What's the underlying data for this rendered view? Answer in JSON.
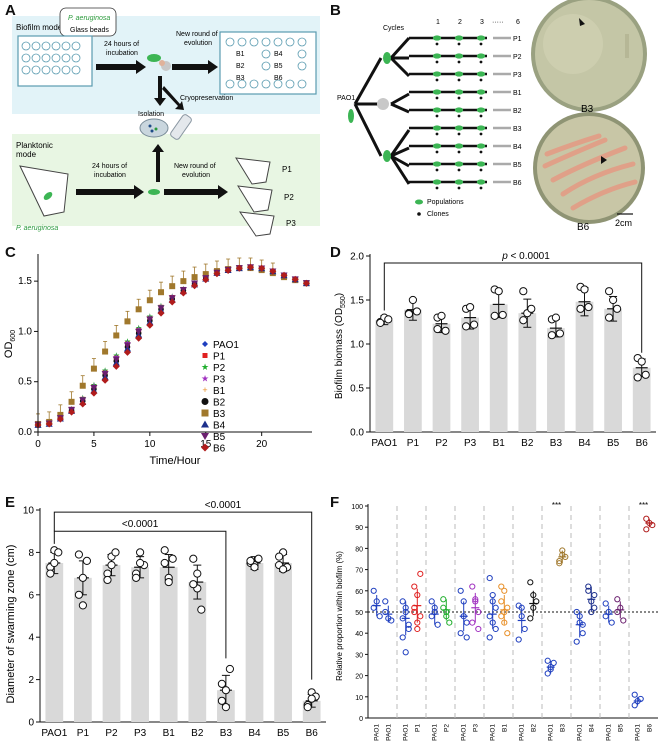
{
  "panel_letters": [
    "A",
    "B",
    "C",
    "D",
    "E",
    "F"
  ],
  "panel_a": {
    "biofilm_mode": "Biofilm mode",
    "planktonic_mode": "Planktonic mode",
    "organism": "P. aeruginosa",
    "glass_beads": "Glass beads",
    "incubation": "24 hours of incubation",
    "new_round": "New round of evolution",
    "isolation": "Isolation",
    "cryopreservation": "Cryopreservation",
    "biofilm_lines": [
      "B1",
      "B2",
      "B3",
      "B4",
      "B5",
      "B6"
    ],
    "planktonic_lines": [
      "P1",
      "P2",
      "P3"
    ]
  },
  "panel_b": {
    "cycles_label": "Cycles",
    "cycle_numbers": [
      "1",
      "2",
      "3",
      "·····",
      "6"
    ],
    "ancestor": "PAO1",
    "lines": [
      "P1",
      "P2",
      "P3",
      "B1",
      "B2",
      "B3",
      "B4",
      "B5",
      "B6"
    ],
    "legend_populations": "Populations",
    "legend_clones": "Clones",
    "plate_top": "B3",
    "plate_bottom": "B6",
    "scale_bar": "2cm"
  },
  "colors": {
    "PAO1": "#1f3fbf",
    "P1": "#e02020",
    "P2": "#1fae2c",
    "P3": "#a030c0",
    "B1": "#e8902a",
    "B2": "#111111",
    "B3": "#a0782c",
    "B4": "#1c2f8c",
    "B5": "#6a1f6e",
    "B6": "#b01c1c",
    "bar": "#d9d9d9",
    "box_biofilm": "#e2f3f8",
    "box_planktonic": "#e8f6e3",
    "green": "#3cb554"
  },
  "chart_data": [
    {
      "panel": "C",
      "type": "line",
      "xlabel": "Time/Hour",
      "ylabel_main": "OD",
      "ylabel_sub": "600",
      "xlim": [
        0,
        24.5
      ],
      "ylim": [
        0,
        1.75
      ],
      "xticks": [
        "0",
        "5",
        "10",
        "15",
        "20"
      ],
      "yticks": [
        "0.0",
        "0.5",
        "1.0",
        "1.5"
      ],
      "legend": [
        "PAO1",
        "P1",
        "P2",
        "P3",
        "B1",
        "B2",
        "B3",
        "B4",
        "B5",
        "B6"
      ],
      "series": [
        {
          "name": "PAO1",
          "values": [
            0.07,
            0.08,
            0.13,
            0.2,
            0.28,
            0.39,
            0.52,
            0.66,
            0.8,
            0.94,
            1.07,
            1.19,
            1.3,
            1.39,
            1.46,
            1.52,
            1.58,
            1.61,
            1.63,
            1.64,
            1.63,
            1.6,
            1.56,
            1.52,
            1.48
          ]
        },
        {
          "name": "B3",
          "values": [
            0.08,
            0.1,
            0.17,
            0.3,
            0.46,
            0.63,
            0.8,
            0.96,
            1.1,
            1.22,
            1.31,
            1.39,
            1.45,
            1.5,
            1.54,
            1.57,
            1.6,
            1.62,
            1.63,
            1.63,
            1.61,
            1.58,
            1.54,
            1.51,
            1.48
          ]
        },
        {
          "name": "B6",
          "values": [
            0.07,
            0.08,
            0.12,
            0.19,
            0.27,
            0.37,
            0.49,
            0.62,
            0.76,
            0.9,
            1.03,
            1.15,
            1.26,
            1.35,
            1.43,
            1.49,
            1.55,
            1.59,
            1.62,
            1.63,
            1.62,
            1.59,
            1.55,
            1.51,
            1.47
          ]
        }
      ]
    },
    {
      "panel": "D",
      "type": "bar",
      "ylabel_main": "Biofilm biomass (OD",
      "ylabel_sub": "550",
      "ylabel_end": ")",
      "categories": [
        "PAO1",
        "P1",
        "P2",
        "P3",
        "B1",
        "B2",
        "B3",
        "B4",
        "B5",
        "B6"
      ],
      "values": [
        1.27,
        1.39,
        1.23,
        1.3,
        1.45,
        1.35,
        1.18,
        1.48,
        1.4,
        0.73
      ],
      "errors": [
        0.05,
        0.12,
        0.1,
        0.13,
        0.15,
        0.16,
        0.1,
        0.16,
        0.14,
        0.1
      ],
      "points": [
        [
          1.25,
          1.3,
          1.28,
          1.24
        ],
        [
          1.35,
          1.5,
          1.37,
          1.34
        ],
        [
          1.3,
          1.32,
          1.15,
          1.17
        ],
        [
          1.4,
          1.42,
          1.22,
          1.2
        ],
        [
          1.62,
          1.6,
          1.33,
          1.32
        ],
        [
          1.6,
          1.35,
          1.4,
          1.27
        ],
        [
          1.28,
          1.3,
          1.12,
          1.1
        ],
        [
          1.65,
          1.62,
          1.42,
          1.4
        ],
        [
          1.6,
          1.5,
          1.4,
          1.3
        ],
        [
          0.84,
          0.8,
          0.65,
          0.62
        ]
      ],
      "ylim": [
        0,
        2.0
      ],
      "yticks": [
        "0.0",
        "0.5",
        "1.0",
        "1.5",
        "2.0"
      ],
      "annotation_p": "p",
      "annotation_rest": " < 0.0001"
    },
    {
      "panel": "E",
      "type": "bar",
      "ylabel": "Diameter of swarming zone (cm)",
      "categories": [
        "PAO1",
        "P1",
        "P2",
        "P3",
        "B1",
        "B2",
        "B3",
        "B4",
        "B5",
        "B6"
      ],
      "values": [
        7.5,
        6.8,
        7.4,
        7.3,
        7.3,
        6.6,
        1.5,
        7.5,
        7.5,
        1.0
      ],
      "errors": [
        0.5,
        0.8,
        0.5,
        0.5,
        0.6,
        0.8,
        0.7,
        0.3,
        0.4,
        0.3
      ],
      "points": [
        [
          7.3,
          8.1,
          8.0,
          7.0,
          7.5
        ],
        [
          7.9,
          6.8,
          7.6,
          6.0,
          5.5
        ],
        [
          7.0,
          7.8,
          8.0,
          6.7,
          7.4
        ],
        [
          7.0,
          8.0,
          7.4,
          6.8,
          7.5
        ],
        [
          8.1,
          6.8,
          7.7,
          7.5,
          6.6
        ],
        [
          7.7,
          6.3,
          5.3,
          6.5,
          7.0
        ],
        [
          1.0,
          1.5,
          2.5,
          1.8,
          0.7
        ],
        [
          7.5,
          7.4,
          7.7,
          7.6,
          7.3
        ],
        [
          7.4,
          8.0,
          7.3,
          7.8,
          7.2
        ],
        [
          0.8,
          1.4,
          1.2,
          0.7,
          1.1
        ]
      ],
      "ylim": [
        0,
        10
      ],
      "yticks": [
        "0",
        "2",
        "4",
        "6",
        "8",
        "10"
      ],
      "annotations": [
        "<0.0001",
        "<0.0001"
      ]
    },
    {
      "panel": "F",
      "type": "scatter",
      "ylabel": "Relative proportion within biofilm  (%)",
      "ylim": [
        0,
        100
      ],
      "yticks": [
        "0",
        "10",
        "20",
        "30",
        "40",
        "50",
        "60",
        "70",
        "80",
        "90",
        "100"
      ],
      "reference_line": 50,
      "significance": "***",
      "groups": [
        {
          "pair": [
            "PAO1",
            "PAO1"
          ],
          "mean": [
            53,
            49
          ],
          "err": [
            5,
            4
          ],
          "pts": [
            [
              60,
              55,
              48,
              52
            ],
            [
              55,
              47,
              46,
              50
            ]
          ]
        },
        {
          "pair": [
            "PAO1",
            "P1"
          ],
          "mean": [
            47,
            53
          ],
          "err": [
            8,
            8
          ],
          "pts": [
            [
              55,
              50,
              42,
              38,
              52,
              44,
              47,
              31
            ],
            [
              62,
              58,
              48,
              52,
              45,
              68,
              50,
              42
            ]
          ]
        },
        {
          "pair": [
            "PAO1",
            "P2"
          ],
          "mean": [
            49,
            51
          ],
          "err": [
            5,
            5
          ],
          "pts": [
            [
              55,
              50,
              44,
              48,
              52
            ],
            [
              56,
              50,
              45,
              52,
              48
            ]
          ]
        },
        {
          "pair": [
            "PAO1",
            "P3"
          ],
          "mean": [
            48,
            52
          ],
          "err": [
            7,
            7
          ],
          "pts": [
            [
              60,
              55,
              45,
              40,
              48,
              38
            ],
            [
              62,
              56,
              50,
              45,
              55,
              42
            ]
          ]
        },
        {
          "pair": [
            "PAO1",
            "B1"
          ],
          "mean": [
            49,
            51
          ],
          "err": [
            7,
            7
          ],
          "pts": [
            [
              66,
              58,
              52,
              48,
              45,
              42,
              38,
              55
            ],
            [
              62,
              60,
              52,
              48,
              45,
              40,
              55,
              50
            ]
          ]
        },
        {
          "pair": [
            "PAO1",
            "B2"
          ],
          "mean": [
            46,
            54
          ],
          "err": [
            6,
            6
          ],
          "pts": [
            [
              53,
              48,
              42,
              37,
              52
            ],
            [
              64,
              58,
              55,
              47,
              52
            ]
          ]
        },
        {
          "pair": [
            "PAO1",
            "B3"
          ],
          "mean": [
            24,
            76
          ],
          "err": [
            3,
            3
          ],
          "pts": [
            [
              21,
              23,
              26,
              27,
              24
            ],
            [
              74,
              79,
              76,
              73,
              77
            ]
          ]
        },
        {
          "pair": [
            "PAO1",
            "B4"
          ],
          "mean": [
            44,
            56
          ],
          "err": [
            6,
            6
          ],
          "pts": [
            [
              50,
              45,
              40,
              36,
              48,
              44
            ],
            [
              62,
              55,
              52,
              60,
              50,
              58
            ]
          ]
        },
        {
          "pair": [
            "PAO1",
            "B5"
          ],
          "mean": [
            49,
            51
          ],
          "err": [
            4,
            4
          ],
          "pts": [
            [
              54,
              50,
              45,
              48
            ],
            [
              56,
              52,
              46,
              50
            ]
          ]
        },
        {
          "pair": [
            "PAO1",
            "B6"
          ],
          "mean": [
            8,
            92
          ],
          "err": [
            2,
            2
          ],
          "pts": [
            [
              6,
              8,
              9,
              11
            ],
            [
              94,
              92,
              91,
              89
            ]
          ]
        }
      ]
    }
  ]
}
